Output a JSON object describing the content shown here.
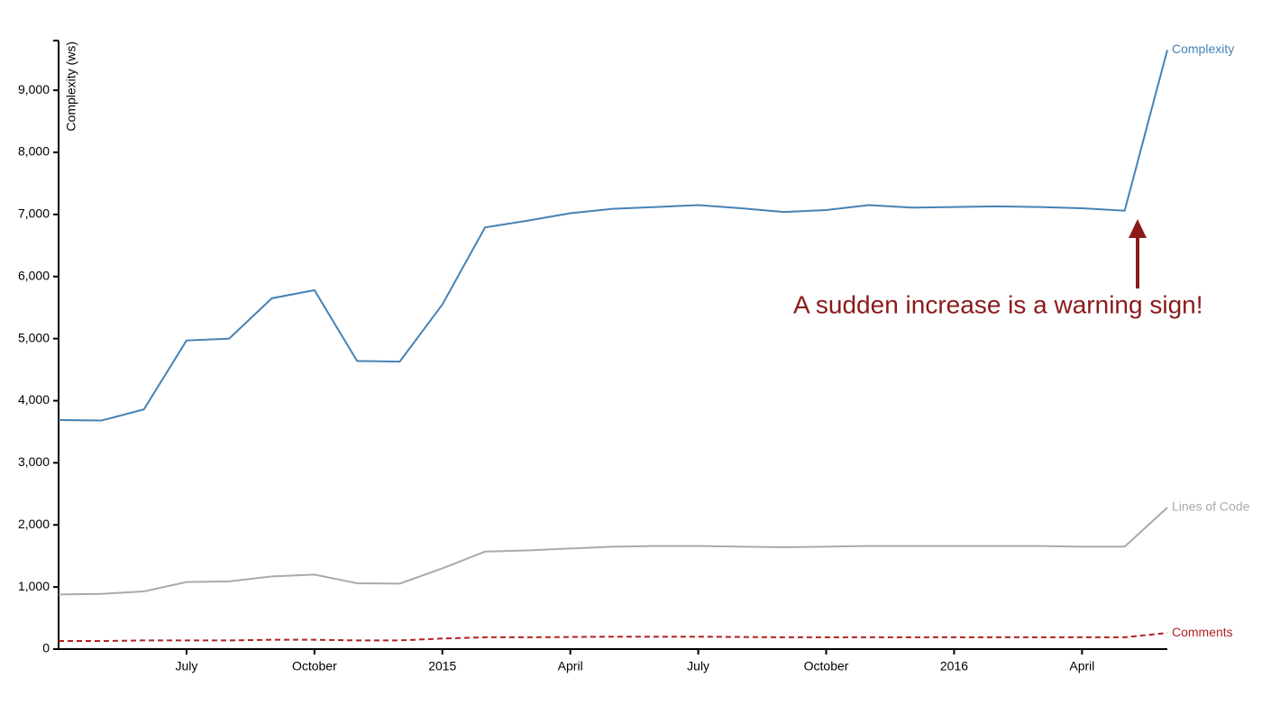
{
  "chart_data": {
    "type": "line",
    "y_label": "Complexity (ws)",
    "annotation": "A sudden increase is a warning sign!",
    "x": [
      "2014-04",
      "2014-05",
      "2014-06",
      "2014-07",
      "2014-08",
      "2014-09",
      "2014-10",
      "2014-11",
      "2014-12",
      "2015-01",
      "2015-02",
      "2015-03",
      "2015-04",
      "2015-05",
      "2015-06",
      "2015-07",
      "2015-08",
      "2015-09",
      "2015-10",
      "2015-11",
      "2015-12",
      "2016-01",
      "2016-02",
      "2016-03",
      "2016-04",
      "2016-05",
      "2016-06"
    ],
    "xlim": [
      "2014-04",
      "2016-06"
    ],
    "xticks": [
      {
        "value": "2014-07",
        "label": "July"
      },
      {
        "value": "2014-10",
        "label": "October"
      },
      {
        "value": "2015-01",
        "label": "2015"
      },
      {
        "value": "2015-04",
        "label": "April"
      },
      {
        "value": "2015-07",
        "label": "July"
      },
      {
        "value": "2015-10",
        "label": "October"
      },
      {
        "value": "2016-01",
        "label": "2016"
      },
      {
        "value": "2016-04",
        "label": "April"
      }
    ],
    "ylim": [
      0,
      9800
    ],
    "yticks": [
      0,
      {
        "value": 1000,
        "label": "1,000"
      },
      {
        "value": 2000,
        "label": "2,000"
      },
      {
        "value": 3000,
        "label": "3,000"
      },
      {
        "value": 4000,
        "label": "4,000"
      },
      {
        "value": 5000,
        "label": "5,000"
      },
      {
        "value": 6000,
        "label": "6,000"
      },
      {
        "value": 7000,
        "label": "7,000"
      },
      {
        "value": 8000,
        "label": "8,000"
      },
      {
        "value": 9000,
        "label": "9,000"
      }
    ],
    "series": [
      {
        "name": "Complexity",
        "color": "#4682b4",
        "dashed": false,
        "values": [
          3690,
          3680,
          3860,
          4970,
          5000,
          5650,
          5780,
          4640,
          4630,
          5550,
          6790,
          6900,
          7020,
          7090,
          7120,
          7150,
          7100,
          7040,
          7070,
          7150,
          7110,
          7120,
          7130,
          7120,
          7100,
          7060,
          9650
        ]
      },
      {
        "name": "Lines of Code",
        "color": "#aaaaaa",
        "dashed": false,
        "values": [
          880,
          890,
          930,
          1080,
          1090,
          1170,
          1200,
          1060,
          1055,
          1300,
          1570,
          1590,
          1620,
          1650,
          1660,
          1660,
          1650,
          1640,
          1650,
          1660,
          1660,
          1660,
          1660,
          1660,
          1650,
          1650,
          2280
        ]
      },
      {
        "name": "Comments",
        "color": "#b22222",
        "dashed": true,
        "values": [
          130,
          130,
          140,
          140,
          140,
          150,
          150,
          140,
          140,
          170,
          190,
          190,
          195,
          200,
          200,
          200,
          195,
          190,
          190,
          190,
          190,
          190,
          190,
          190,
          190,
          190,
          260
        ]
      }
    ]
  }
}
